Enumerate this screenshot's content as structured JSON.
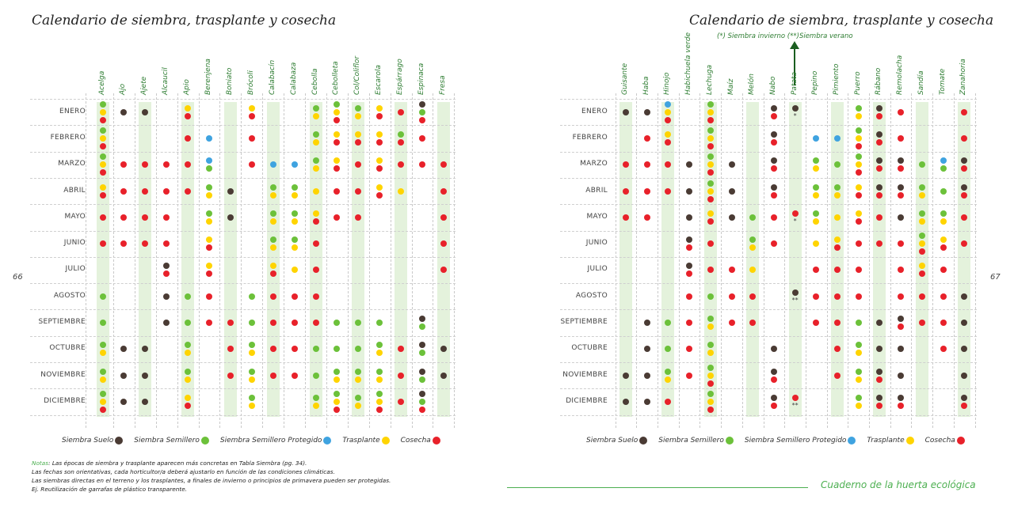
{
  "left_page": {
    "title": "Calendario de siembra, trasplante y cosecha",
    "page_number": "66"
  },
  "right_page": {
    "title": "Calendario de siembra, trasplante y cosecha",
    "page_number": "67",
    "annotation": "(*) Siembra invierno  (**)Siembra verano",
    "footer": "Cuaderno de la huerta ecológica"
  },
  "legend": [
    {
      "code": "S",
      "label": "Siembra Suelo",
      "color": "#4a3b34"
    },
    {
      "code": "G",
      "label": "Siembra Semillero",
      "color": "#6cc13a"
    },
    {
      "code": "B",
      "label": "Siembra Semillero Protegido",
      "color": "#3fa3e0"
    },
    {
      "code": "Y",
      "label": "Trasplante",
      "color": "#ffd400"
    },
    {
      "code": "R",
      "label": "Cosecha",
      "color": "#e8212a"
    }
  ],
  "notes": {
    "label": "Notas",
    "lines": [
      ": Las épocas de siembra y trasplante aparecen más concretas en Tabla Siembra (pg. 34).",
      "Las fechas son orientativas, cada horticultor/a deberá ajustarlo en función de las condiciones climáticas.",
      "Las siembras directas en el terreno y los trasplantes, a finales de invierno o principios de primavera pueden ser protegidas.",
      "Ej. Reutilización de garrafas de plástico transparente."
    ]
  },
  "chart_data": [
    {
      "type": "table",
      "title": "Calendario de siembra, trasplante y cosecha",
      "months": [
        "ENERO",
        "FEBRERO",
        "MARZO",
        "ABRIL",
        "MAYO",
        "JUNIO",
        "JULIO",
        "AGOSTO",
        "SEPTIEMBRE",
        "OCTUBRE",
        "NOVIEMBRE",
        "DICIEMBRE"
      ],
      "crops": [
        "Acelga",
        "Ajo",
        "Ajete",
        "Alcaucil",
        "Apio",
        "Berenjena",
        "Boniato",
        "Brócoli",
        "Calabacín",
        "Calabaza",
        "Cebolla",
        "Cebolleta",
        "Col/Coliflor",
        "Escarola",
        "Espárrago",
        "Espinaca",
        "Fresa"
      ],
      "cells": [
        [
          "GYR",
          "S",
          "S",
          "",
          "YR",
          "",
          "",
          "YR",
          "",
          "",
          "GY",
          "GYR",
          "GY",
          "YR",
          "R",
          "SGR",
          ""
        ],
        [
          "GYR",
          "",
          "",
          "",
          "R",
          "B",
          "",
          "R",
          "",
          "",
          "GY",
          "YR",
          "YR",
          "YR",
          "GR",
          "R",
          ""
        ],
        [
          "GYR",
          "R",
          "R",
          "R",
          "R",
          "BG",
          "",
          "R",
          "B",
          "B",
          "GY",
          "YR",
          "R",
          "YR",
          "R",
          "R",
          "R"
        ],
        [
          "YR",
          "R",
          "R",
          "R",
          "R",
          "GY",
          "S",
          "",
          "GY",
          "GY",
          "Y",
          "R",
          "R",
          "YR",
          "Y",
          "",
          "R"
        ],
        [
          "R",
          "R",
          "R",
          "R",
          "",
          "GY",
          "S",
          "",
          "GY",
          "GY",
          "YR",
          "R",
          "R",
          "",
          "",
          "",
          "R"
        ],
        [
          "R",
          "R",
          "R",
          "R",
          "",
          "YR",
          "",
          "",
          "GY",
          "GY",
          "R",
          "",
          "",
          "",
          "",
          "",
          "R"
        ],
        [
          "",
          "",
          "",
          "SR",
          "",
          "YR",
          "",
          "",
          "YR",
          "Y",
          "R",
          "",
          "",
          "",
          "",
          "",
          "R"
        ],
        [
          "G",
          "",
          "",
          "S",
          "G",
          "R",
          "",
          "G",
          "R",
          "R",
          "R",
          "",
          "",
          "",
          "",
          "",
          ""
        ],
        [
          "G",
          "",
          "",
          "S",
          "G",
          "R",
          "R",
          "G",
          "R",
          "R",
          "R",
          "G",
          "G",
          "G",
          "",
          "SG",
          ""
        ],
        [
          "GY",
          "S",
          "S",
          "",
          "GY",
          "",
          "R",
          "GY",
          "R",
          "R",
          "G",
          "G",
          "G",
          "GY",
          "R",
          "SG",
          "S"
        ],
        [
          "GY",
          "S",
          "S",
          "",
          "GY",
          "",
          "R",
          "GY",
          "R",
          "R",
          "G",
          "GY",
          "GY",
          "GY",
          "R",
          "SG",
          "S"
        ],
        [
          "GYR",
          "S",
          "S",
          "",
          "YR",
          "",
          "",
          "GY",
          "",
          "",
          "GY",
          "GYR",
          "GY",
          "GYR",
          "R",
          "SGR",
          ""
        ]
      ]
    },
    {
      "type": "table",
      "title": "Calendario de siembra, trasplante y cosecha",
      "months": [
        "ENERO",
        "FEBRERO",
        "MARZO",
        "ABRIL",
        "MAYO",
        "JUNIO",
        "JULIO",
        "AGOSTO",
        "SEPTIEMBRE",
        "OCTUBRE",
        "NOVIEMBRE",
        "DICIEMBRE"
      ],
      "crops": [
        "Guisante",
        "Haba",
        "Hinojo",
        "Habichuela verde",
        "Lechuga",
        "Maíz",
        "Melón",
        "Nabo",
        "Patata",
        "Pepino",
        "Pimiento",
        "Puerro",
        "Rábano",
        "Remolacha",
        "Sandía",
        "Tomate",
        "Zanahoria"
      ],
      "cells": [
        [
          "S",
          "S",
          "BYR",
          "",
          "GYR",
          "",
          "",
          "SR",
          "S*",
          "",
          "",
          "GY",
          "SR",
          "R",
          "",
          "",
          "R"
        ],
        [
          "",
          "R",
          "YR",
          "",
          "GYR",
          "",
          "",
          "SR",
          "",
          "B",
          "B",
          "GYR",
          "SR",
          "R",
          "",
          "",
          "R"
        ],
        [
          "R",
          "R",
          "R",
          "S",
          "GYR",
          "S",
          "",
          "SR",
          "",
          "GY",
          "G",
          "GYR",
          "SR",
          "SR",
          "G",
          "BG",
          "SR"
        ],
        [
          "R",
          "R",
          "R",
          "S",
          "GYR",
          "S",
          "",
          "SR",
          "",
          "GY",
          "GY",
          "YR",
          "SR",
          "SR",
          "GY",
          "G",
          "SR"
        ],
        [
          "R",
          "R",
          "",
          "S",
          "YR",
          "S",
          "G",
          "R",
          "R*",
          "GY",
          "Y",
          "YR",
          "R",
          "S",
          "GY",
          "GY",
          "R"
        ],
        [
          "",
          "",
          "",
          "SR",
          "R",
          "",
          "GY",
          "R",
          "",
          "Y",
          "YR",
          "R",
          "R",
          "R",
          "GYR",
          "YR",
          "R"
        ],
        [
          "",
          "",
          "",
          "SR",
          "R",
          "R",
          "Y",
          "",
          "",
          "R",
          "R",
          "R",
          "",
          "R",
          "YR",
          "R",
          ""
        ],
        [
          "",
          "",
          "",
          "R",
          "G",
          "R",
          "R",
          "",
          "S**",
          "R",
          "R",
          "R",
          "",
          "R",
          "R",
          "R",
          "S"
        ],
        [
          "",
          "S",
          "G",
          "R",
          "GY",
          "R",
          "R",
          "",
          "",
          "R",
          "R",
          "G",
          "S",
          "SR",
          "R",
          "R",
          "S"
        ],
        [
          "",
          "S",
          "G",
          "R",
          "GY",
          "",
          "",
          "S",
          "",
          "",
          "R",
          "GY",
          "S",
          "S",
          "",
          "R",
          "S"
        ],
        [
          "S",
          "S",
          "GY",
          "R",
          "GYR",
          "",
          "",
          "SR",
          "",
          "",
          "R",
          "GY",
          "SR",
          "S",
          "",
          "",
          "S"
        ],
        [
          "S",
          "S",
          "R",
          "",
          "GYR",
          "",
          "",
          "SR",
          "R**",
          "",
          "",
          "GY",
          "SR",
          "SR",
          "",
          "",
          "SR"
        ]
      ]
    }
  ]
}
